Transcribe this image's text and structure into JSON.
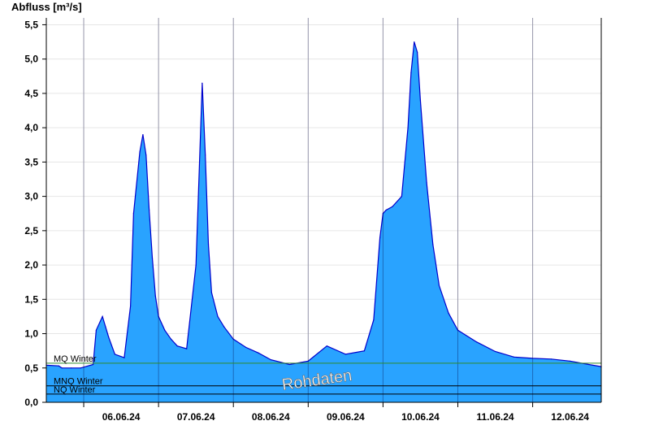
{
  "chart_data": {
    "type": "area",
    "ylabel": "Abfluss [m³/s]",
    "ylim": [
      0,
      5.6
    ],
    "xlim": [
      "05.06.24 12:00",
      "12.06.24 22:00"
    ],
    "y_ticks": [
      "0,0",
      "0,5",
      "1,0",
      "1,5",
      "2,0",
      "2,5",
      "3,0",
      "3,5",
      "4,0",
      "4,5",
      "5,0",
      "5,5"
    ],
    "x_ticks": [
      "06.06.24",
      "07.06.24",
      "08.06.24",
      "09.06.24",
      "10.06.24",
      "11.06.24",
      "12.06.24"
    ],
    "grid": true,
    "colors": {
      "fill": "#29a3ff",
      "line": "#0000cc",
      "mq_line": "#2e8b2e",
      "ref_line": "#000000"
    },
    "reference_lines": [
      {
        "name": "MQ Winter",
        "value": 0.57
      },
      {
        "name": "MNQ Winter",
        "value": 0.24
      },
      {
        "name": "NQ Winter",
        "value": 0.12
      }
    ],
    "annotation": "Rohdaten",
    "series": [
      {
        "x": [
          "05.06.24 12:00",
          "05.06.24 16:00",
          "05.06.24 17:00",
          "05.06.24 20:00",
          "05.06.24 23:00",
          "06.06.24 03:00",
          "06.06.24 04:00",
          "06.06.24 06:00",
          "06.06.24 07:00",
          "06.06.24 08:00",
          "06.06.24 10:00",
          "06.06.24 13:00",
          "06.06.24 15:00",
          "06.06.24 16:00",
          "06.06.24 18:00",
          "06.06.24 19:00",
          "06.06.24 20:00",
          "06.06.24 21:00",
          "06.06.24 22:00",
          "06.06.24 23:00",
          "07.06.24 00:00",
          "07.06.24 02:00",
          "07.06.24 04:00",
          "07.06.24 06:00",
          "07.06.24 09:00",
          "07.06.24 12:00",
          "07.06.24 14:00",
          "07.06.24 15:00",
          "07.06.24 16:00",
          "07.06.24 17:00",
          "07.06.24 19:00",
          "07.06.24 21:00",
          "08.06.24 00:00",
          "08.06.24 04:00",
          "08.06.24 08:00",
          "08.06.24 12:00",
          "08.06.24 18:00",
          "09.06.24 00:00",
          "09.06.24 06:00",
          "09.06.24 12:00",
          "09.06.24 18:00",
          "09.06.24 21:00",
          "09.06.24 23:00",
          "10.06.24 00:00",
          "10.06.24 01:00",
          "10.06.24 03:00",
          "10.06.24 06:00",
          "10.06.24 08:00",
          "10.06.24 09:00",
          "10.06.24 10:00",
          "10.06.24 11:00",
          "10.06.24 12:00",
          "10.06.24 14:00",
          "10.06.24 16:00",
          "10.06.24 18:00",
          "10.06.24 21:00",
          "11.06.24 00:00",
          "11.06.24 06:00",
          "11.06.24 12:00",
          "11.06.24 18:00",
          "12.06.24 00:00",
          "12.06.24 06:00",
          "12.06.24 12:00",
          "12.06.24 18:00",
          "12.06.24 22:00"
        ],
        "y": [
          0.54,
          0.53,
          0.5,
          0.5,
          0.5,
          0.55,
          1.05,
          1.25,
          1.1,
          0.95,
          0.7,
          0.65,
          1.4,
          2.75,
          3.65,
          3.9,
          3.6,
          2.8,
          2.1,
          1.55,
          1.25,
          1.05,
          0.92,
          0.82,
          0.78,
          2.0,
          4.65,
          3.6,
          2.3,
          1.6,
          1.25,
          1.1,
          0.92,
          0.8,
          0.72,
          0.62,
          0.55,
          0.6,
          0.82,
          0.7,
          0.75,
          1.2,
          2.4,
          2.75,
          2.8,
          2.85,
          3.0,
          4.0,
          4.8,
          5.25,
          5.1,
          4.4,
          3.2,
          2.3,
          1.7,
          1.3,
          1.05,
          0.88,
          0.74,
          0.66,
          0.64,
          0.63,
          0.6,
          0.55,
          0.52
        ]
      }
    ]
  }
}
